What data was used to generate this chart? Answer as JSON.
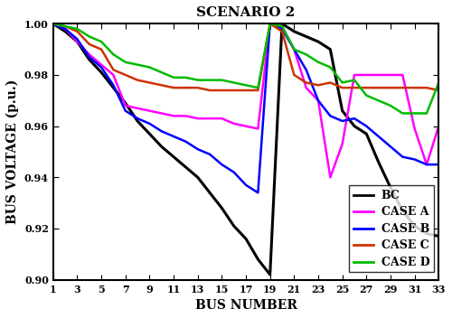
{
  "title": "SCENARIO 2",
  "xlabel": "BUS NUMBER",
  "ylabel": "BUS VOLTAGE (p.u.)",
  "xlim": [
    1,
    33
  ],
  "ylim": [
    0.9,
    1.0
  ],
  "xticks": [
    1,
    3,
    5,
    7,
    9,
    11,
    13,
    15,
    17,
    19,
    21,
    23,
    25,
    27,
    29,
    31,
    33
  ],
  "yticks": [
    0.9,
    0.92,
    0.94,
    0.96,
    0.98,
    1.0
  ],
  "bus_numbers": [
    1,
    2,
    3,
    4,
    5,
    6,
    7,
    8,
    9,
    10,
    11,
    12,
    13,
    14,
    15,
    16,
    17,
    18,
    19,
    20,
    21,
    22,
    23,
    24,
    25,
    26,
    27,
    28,
    29,
    30,
    31,
    32,
    33
  ],
  "BC": [
    1.0,
    0.997,
    0.993,
    0.986,
    0.981,
    0.975,
    0.969,
    0.962,
    0.957,
    0.952,
    0.948,
    0.944,
    0.94,
    0.934,
    0.928,
    0.921,
    0.916,
    0.908,
    0.902,
    1.0,
    0.997,
    0.995,
    0.993,
    0.99,
    0.966,
    0.96,
    0.957,
    0.946,
    0.936,
    0.927,
    0.921,
    0.918,
    0.917
  ],
  "CASE_A": [
    1.0,
    0.998,
    0.993,
    0.988,
    0.984,
    0.98,
    0.968,
    0.967,
    0.966,
    0.965,
    0.964,
    0.964,
    0.963,
    0.963,
    0.963,
    0.961,
    0.96,
    0.959,
    1.0,
    0.999,
    0.99,
    0.975,
    0.97,
    0.94,
    0.953,
    0.98,
    0.98,
    0.98,
    0.98,
    0.98,
    0.959,
    0.945,
    0.96
  ],
  "CASE_B": [
    1.0,
    0.998,
    0.994,
    0.987,
    0.983,
    0.976,
    0.966,
    0.963,
    0.961,
    0.958,
    0.956,
    0.954,
    0.951,
    0.949,
    0.945,
    0.942,
    0.937,
    0.934,
    1.0,
    0.998,
    0.99,
    0.982,
    0.97,
    0.964,
    0.962,
    0.963,
    0.96,
    0.956,
    0.952,
    0.948,
    0.947,
    0.945,
    0.945
  ],
  "CASE_C": [
    1.0,
    0.999,
    0.997,
    0.992,
    0.99,
    0.982,
    0.98,
    0.978,
    0.977,
    0.976,
    0.975,
    0.975,
    0.975,
    0.974,
    0.974,
    0.974,
    0.974,
    0.974,
    1.0,
    0.997,
    0.98,
    0.977,
    0.976,
    0.977,
    0.975,
    0.975,
    0.975,
    0.975,
    0.975,
    0.975,
    0.975,
    0.975,
    0.974
  ],
  "CASE_D": [
    1.0,
    0.999,
    0.998,
    0.995,
    0.993,
    0.988,
    0.985,
    0.984,
    0.983,
    0.981,
    0.979,
    0.979,
    0.978,
    0.978,
    0.978,
    0.977,
    0.976,
    0.975,
    1.0,
    0.999,
    0.99,
    0.988,
    0.985,
    0.983,
    0.977,
    0.978,
    0.972,
    0.97,
    0.968,
    0.965,
    0.965,
    0.965,
    0.977
  ],
  "line_colors": {
    "BC": "#000000",
    "CASE_A": "#ff00ff",
    "CASE_B": "#0000ff",
    "CASE_C": "#cc3300",
    "CASE_D": "#00bb00"
  },
  "line_widths": {
    "BC": 2.2,
    "CASE_A": 1.8,
    "CASE_B": 1.8,
    "CASE_C": 1.8,
    "CASE_D": 1.8
  },
  "legend_labels": [
    "BC",
    "CASE A",
    "CASE B",
    "CASE C",
    "CASE D"
  ],
  "legend_keys": [
    "BC",
    "CASE_A",
    "CASE_B",
    "CASE_C",
    "CASE_D"
  ]
}
